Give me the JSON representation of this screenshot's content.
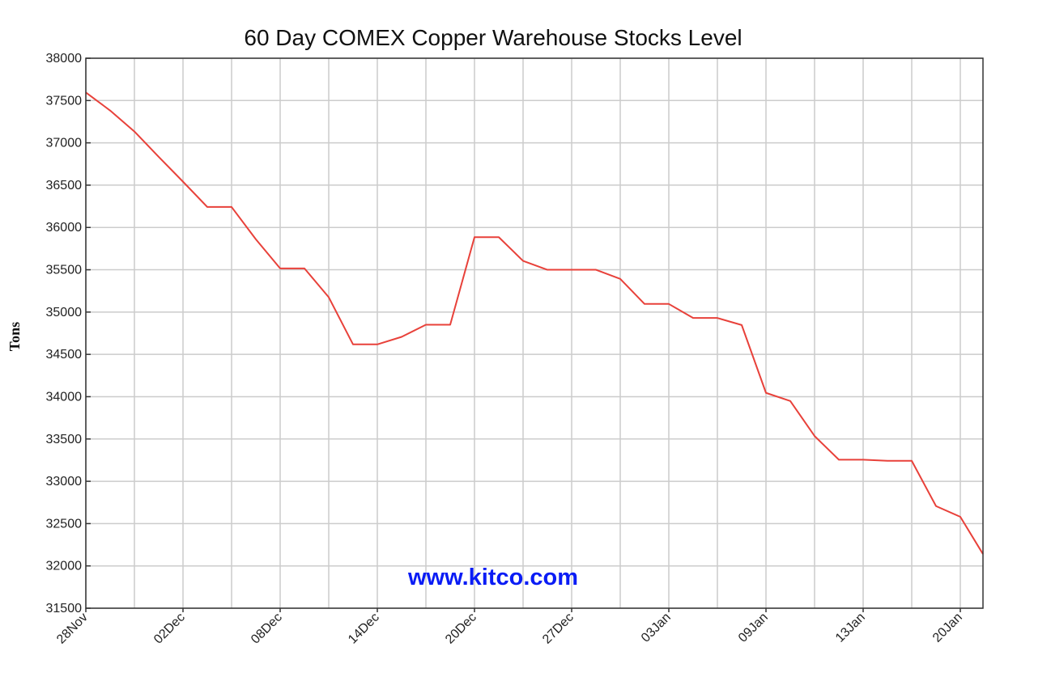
{
  "chart_data": {
    "type": "line",
    "title": "60 Day COMEX Copper Warehouse Stocks Level",
    "xlabel": "",
    "ylabel": "Tons",
    "watermark": "www.kitco.com",
    "ylim": [
      31500,
      38000
    ],
    "yticks": [
      31500,
      32000,
      32500,
      33000,
      33500,
      34000,
      34500,
      35000,
      35500,
      36000,
      36500,
      37000,
      37500,
      38000
    ],
    "xtick_labels": [
      "28Nov",
      "02Dec",
      "08Dec",
      "14Dec",
      "20Dec",
      "27Dec",
      "03Jan",
      "09Jan",
      "13Jan",
      "20Jan"
    ],
    "xtick_every_points": 4,
    "grid": true,
    "series": [
      {
        "name": "COMEX Copper Warehouse Stocks",
        "color": "#e8413a",
        "values": [
          37596,
          37382,
          37134,
          36834,
          36541,
          36242,
          36242,
          35860,
          35516,
          35516,
          35175,
          34618,
          34618,
          34707,
          34850,
          34850,
          35885,
          35885,
          35605,
          35500,
          35500,
          35500,
          35392,
          35096,
          35096,
          34930,
          34930,
          34847,
          34045,
          33949,
          33535,
          33255,
          33255,
          33242,
          33242,
          32707,
          32580,
          32140
        ]
      }
    ],
    "colors": {
      "grid": "#cccccc",
      "axis": "#333333",
      "watermark": "#0a1cf5"
    }
  }
}
